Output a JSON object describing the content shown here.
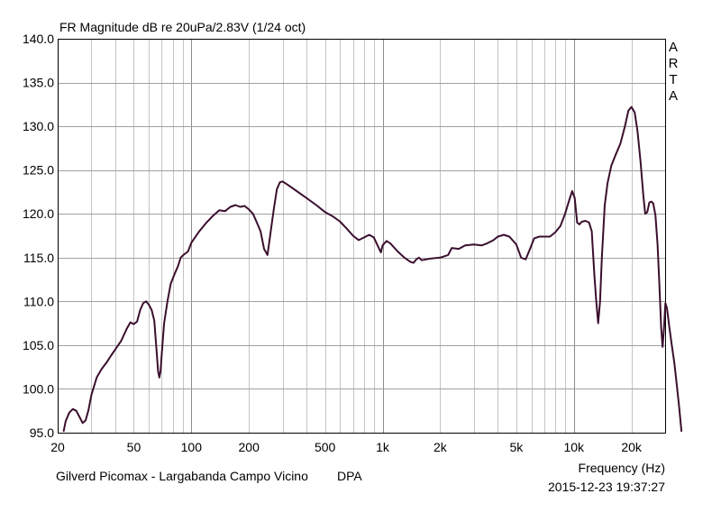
{
  "chart_data": {
    "type": "line",
    "title": "FR Magnitude dB re 20uPa/2.83V (1/24 oct)",
    "xlabel": "Frequency (Hz)",
    "ylabel": "",
    "x_scale": "log",
    "xlim": [
      20,
      30000
    ],
    "ylim": [
      95.0,
      140.0
    ],
    "grid": true,
    "y_ticks": [
      "140.0",
      "135.0",
      "130.0",
      "125.0",
      "120.0",
      "115.0",
      "110.0",
      "105.0",
      "100.0",
      "95.0"
    ],
    "x_ticks": [
      {
        "value": 20,
        "label": "20"
      },
      {
        "value": 50,
        "label": "50"
      },
      {
        "value": 100,
        "label": "100"
      },
      {
        "value": 200,
        "label": "200"
      },
      {
        "value": 500,
        "label": "500"
      },
      {
        "value": 1000,
        "label": "1k"
      },
      {
        "value": 2000,
        "label": "2k"
      },
      {
        "value": 5000,
        "label": "5k"
      },
      {
        "value": 10000,
        "label": "10k"
      },
      {
        "value": 20000,
        "label": "20k"
      }
    ],
    "series": [
      {
        "color": "#3b0f2e",
        "points": [
          [
            21.5,
            95.2
          ],
          [
            22,
            96.3
          ],
          [
            23,
            97.3
          ],
          [
            24,
            97.7
          ],
          [
            25,
            97.5
          ],
          [
            26,
            96.8
          ],
          [
            27,
            96.1
          ],
          [
            28,
            96.4
          ],
          [
            29,
            97.6
          ],
          [
            30,
            99.3
          ],
          [
            32,
            101.3
          ],
          [
            34,
            102.3
          ],
          [
            36,
            103.0
          ],
          [
            38,
            103.8
          ],
          [
            40,
            104.5
          ],
          [
            43,
            105.5
          ],
          [
            46,
            106.9
          ],
          [
            48,
            107.6
          ],
          [
            50,
            107.4
          ],
          [
            52,
            107.7
          ],
          [
            54,
            109.0
          ],
          [
            56,
            109.8
          ],
          [
            58,
            110.0
          ],
          [
            60,
            109.6
          ],
          [
            62,
            109.0
          ],
          [
            64,
            107.8
          ],
          [
            66,
            104.0
          ],
          [
            67,
            102.0
          ],
          [
            68,
            101.3
          ],
          [
            69,
            102.0
          ],
          [
            70,
            104.0
          ],
          [
            72,
            107.5
          ],
          [
            75,
            110.0
          ],
          [
            78,
            112.0
          ],
          [
            82,
            113.2
          ],
          [
            85,
            114.0
          ],
          [
            88,
            115.0
          ],
          [
            92,
            115.4
          ],
          [
            96,
            115.7
          ],
          [
            100,
            116.7
          ],
          [
            110,
            118.0
          ],
          [
            120,
            119.0
          ],
          [
            130,
            119.8
          ],
          [
            140,
            120.4
          ],
          [
            150,
            120.3
          ],
          [
            160,
            120.8
          ],
          [
            170,
            121.0
          ],
          [
            180,
            120.8
          ],
          [
            190,
            120.9
          ],
          [
            200,
            120.5
          ],
          [
            210,
            120.0
          ],
          [
            220,
            119.0
          ],
          [
            230,
            118.0
          ],
          [
            240,
            116.0
          ],
          [
            250,
            115.3
          ],
          [
            260,
            118.0
          ],
          [
            270,
            120.6
          ],
          [
            280,
            122.8
          ],
          [
            290,
            123.6
          ],
          [
            300,
            123.7
          ],
          [
            320,
            123.3
          ],
          [
            350,
            122.7
          ],
          [
            400,
            121.8
          ],
          [
            450,
            121.0
          ],
          [
            500,
            120.2
          ],
          [
            550,
            119.7
          ],
          [
            600,
            119.1
          ],
          [
            650,
            118.3
          ],
          [
            700,
            117.5
          ],
          [
            750,
            117.0
          ],
          [
            800,
            117.3
          ],
          [
            850,
            117.6
          ],
          [
            900,
            117.3
          ],
          [
            950,
            116.2
          ],
          [
            980,
            115.6
          ],
          [
            1000,
            116.4
          ],
          [
            1050,
            116.9
          ],
          [
            1100,
            116.6
          ],
          [
            1200,
            115.7
          ],
          [
            1300,
            115.0
          ],
          [
            1400,
            114.5
          ],
          [
            1450,
            114.4
          ],
          [
            1500,
            114.8
          ],
          [
            1550,
            115.0
          ],
          [
            1600,
            114.7
          ],
          [
            1800,
            114.9
          ],
          [
            2000,
            115.0
          ],
          [
            2200,
            115.3
          ],
          [
            2300,
            116.1
          ],
          [
            2500,
            116.0
          ],
          [
            2700,
            116.4
          ],
          [
            3000,
            116.5
          ],
          [
            3300,
            116.4
          ],
          [
            3500,
            116.6
          ],
          [
            3800,
            117.0
          ],
          [
            4000,
            117.4
          ],
          [
            4300,
            117.6
          ],
          [
            4600,
            117.4
          ],
          [
            5000,
            116.5
          ],
          [
            5300,
            115.0
          ],
          [
            5600,
            114.8
          ],
          [
            5900,
            116.0
          ],
          [
            6200,
            117.2
          ],
          [
            6600,
            117.4
          ],
          [
            7000,
            117.4
          ],
          [
            7500,
            117.4
          ],
          [
            8000,
            117.9
          ],
          [
            8500,
            118.6
          ],
          [
            9000,
            120.0
          ],
          [
            9500,
            121.7
          ],
          [
            9800,
            122.6
          ],
          [
            10100,
            121.8
          ],
          [
            10400,
            119.0
          ],
          [
            10700,
            118.8
          ],
          [
            11000,
            119.1
          ],
          [
            11500,
            119.2
          ],
          [
            12000,
            119.0
          ],
          [
            12400,
            118.0
          ],
          [
            12800,
            113.0
          ],
          [
            13100,
            110.0
          ],
          [
            13400,
            107.5
          ],
          [
            13700,
            110.0
          ],
          [
            14000,
            115.0
          ],
          [
            14500,
            121.0
          ],
          [
            15000,
            123.5
          ],
          [
            15700,
            125.5
          ],
          [
            16500,
            126.7
          ],
          [
            17500,
            128.0
          ],
          [
            18500,
            130.0
          ],
          [
            19300,
            131.8
          ],
          [
            20000,
            132.2
          ],
          [
            20800,
            131.6
          ],
          [
            21500,
            129.5
          ],
          [
            22300,
            126.0
          ],
          [
            23100,
            122.0
          ],
          [
            23600,
            120.0
          ],
          [
            24200,
            120.2
          ],
          [
            24800,
            121.3
          ],
          [
            25400,
            121.4
          ],
          [
            26000,
            121.2
          ],
          [
            26700,
            119.8
          ],
          [
            27400,
            116.5
          ],
          [
            28000,
            112.0
          ],
          [
            28600,
            107.0
          ],
          [
            29100,
            104.8
          ],
          [
            29600,
            107.0
          ],
          [
            30100,
            109.8
          ],
          [
            30700,
            109.2
          ],
          [
            31500,
            107.2
          ],
          [
            32500,
            105.0
          ],
          [
            33500,
            103.0
          ],
          [
            34500,
            100.5
          ],
          [
            35500,
            98.0
          ],
          [
            36500,
            95.2
          ]
        ]
      }
    ]
  },
  "label_right": [
    "A",
    "R",
    "T",
    "A"
  ],
  "footer": {
    "note": "Gilverd Picomax - Largabanda Campo Vicino",
    "dpa": "DPA",
    "datestamp": "2015-12-23  19:37:27"
  }
}
